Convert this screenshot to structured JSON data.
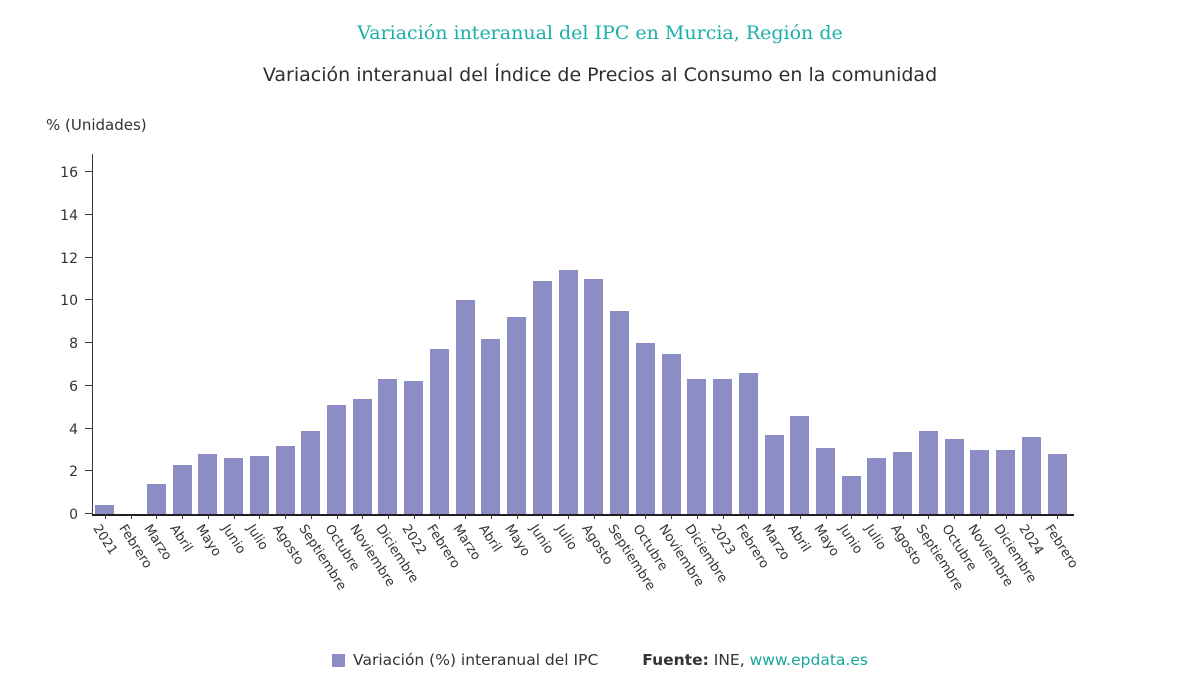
{
  "header": {
    "title": "Variación interanual del IPC en Murcia, Región de",
    "subtitle": "Variación interanual del Índice de Precios al Consumo en la comunidad"
  },
  "chart_data": {
    "type": "bar",
    "title": "Variación interanual del IPC en Murcia, Región de",
    "subtitle": "Variación interanual del Índice de Precios al Consumo en la comunidad",
    "ylabel": "% (Unidades)",
    "xlabel": "",
    "categories": [
      "2021",
      "Febrero",
      "Marzo",
      "Abril",
      "Mayo",
      "Junio",
      "Julio",
      "Agosto",
      "Septiembre",
      "Octubre",
      "Noviembre",
      "Diciembre",
      "2022",
      "Febrero",
      "Marzo",
      "Abril",
      "Mayo",
      "Junio",
      "Julio",
      "Agosto",
      "Septiembre",
      "Octubre",
      "Noviembre",
      "Diciembre",
      "2023",
      "Febrero",
      "Marzo",
      "Abril",
      "Mayo",
      "Junio",
      "Julio",
      "Agosto",
      "Septiembre",
      "Octubre",
      "Noviembre",
      "Diciembre",
      "2024",
      "Febrero"
    ],
    "values": [
      0.4,
      0.0,
      1.4,
      2.3,
      2.8,
      2.6,
      2.7,
      3.2,
      3.9,
      5.1,
      5.4,
      6.3,
      6.2,
      7.7,
      10.0,
      8.2,
      9.2,
      10.9,
      11.4,
      11.0,
      9.5,
      8.0,
      7.5,
      6.3,
      6.3,
      6.6,
      3.7,
      4.6,
      3.1,
      1.8,
      2.6,
      2.9,
      3.9,
      3.5,
      3.0,
      3.0,
      3.6,
      2.8
    ],
    "ylim": [
      0,
      16
    ],
    "yticks": [
      0,
      2,
      4,
      6,
      8,
      10,
      12,
      14,
      16
    ],
    "grid": false,
    "legend_label": "Variación (%) interanual del IPC",
    "legend_position": "bottom"
  },
  "footer": {
    "source_label": "Fuente:",
    "source_name": "INE,",
    "source_link": "www.epdata.es"
  },
  "colors": {
    "title": "#1bb0a8",
    "bar": "#8d8dc6",
    "link": "#18a79e",
    "axis": "#3a3a3a"
  }
}
